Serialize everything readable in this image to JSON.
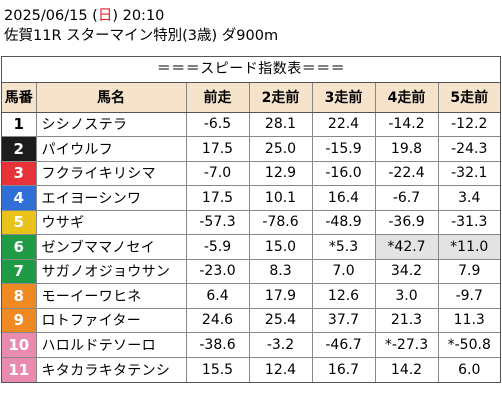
{
  "header": {
    "date_prefix": "2025/06/15 (",
    "weekday": "日",
    "date_suffix": ") 20:10",
    "race": "佐賀11R スターマイン特別(3歳) ダ900m"
  },
  "sheet_title": "＝＝＝スピード指数表＝＝＝",
  "columns": [
    "馬番",
    "馬名",
    "前走",
    "2走前",
    "3走前",
    "4走前",
    "5走前"
  ],
  "colors": {
    "header_bg": "#f6e3cc",
    "highlight_bg": "#e3e3e3",
    "frames": [
      "#ffffff",
      "#1c1c1c",
      "#e8323a",
      "#2f6fd6",
      "#e9c21a",
      "#1f9a45",
      "#ef8a23",
      "#e98ab0"
    ]
  },
  "rows": [
    {
      "num": "1",
      "frame": 1,
      "name": "シシノステラ",
      "v": [
        "-6.5",
        "28.1",
        "22.4",
        "-14.2",
        "-12.2"
      ],
      "gray": [
        false,
        false,
        false,
        false,
        false
      ]
    },
    {
      "num": "2",
      "frame": 2,
      "name": "パイウルフ",
      "v": [
        "17.5",
        "25.0",
        "-15.9",
        "19.8",
        "-24.3"
      ],
      "gray": [
        false,
        false,
        false,
        false,
        false
      ]
    },
    {
      "num": "3",
      "frame": 3,
      "name": "フクライキリシマ",
      "v": [
        "-7.0",
        "12.9",
        "-16.0",
        "-22.4",
        "-32.1"
      ],
      "gray": [
        false,
        false,
        false,
        false,
        false
      ]
    },
    {
      "num": "4",
      "frame": 4,
      "name": "エイヨーシンワ",
      "v": [
        "17.5",
        "10.1",
        "16.4",
        "-6.7",
        "3.4"
      ],
      "gray": [
        false,
        false,
        false,
        false,
        false
      ]
    },
    {
      "num": "5",
      "frame": 5,
      "name": "ウサギ",
      "v": [
        "-57.3",
        "-78.6",
        "-48.9",
        "-36.9",
        "-31.3"
      ],
      "gray": [
        false,
        false,
        false,
        false,
        false
      ]
    },
    {
      "num": "6",
      "frame": 6,
      "name": "ゼンブママノセイ",
      "v": [
        "-5.9",
        "15.0",
        "*5.3",
        "*42.7",
        "*11.0"
      ],
      "gray": [
        false,
        false,
        false,
        true,
        true
      ]
    },
    {
      "num": "7",
      "frame": 6,
      "name": "サガノオジョウサン",
      "v": [
        "-23.0",
        "8.3",
        "7.0",
        "34.2",
        "7.9"
      ],
      "gray": [
        false,
        false,
        false,
        false,
        false
      ]
    },
    {
      "num": "8",
      "frame": 7,
      "name": "モーイーワヒネ",
      "v": [
        "6.4",
        "17.9",
        "12.6",
        "3.0",
        "-9.7"
      ],
      "gray": [
        false,
        false,
        false,
        false,
        false
      ]
    },
    {
      "num": "9",
      "frame": 7,
      "name": "ロトファイター",
      "v": [
        "24.6",
        "25.4",
        "37.7",
        "21.3",
        "11.3"
      ],
      "gray": [
        false,
        false,
        false,
        false,
        false
      ]
    },
    {
      "num": "10",
      "frame": 8,
      "name": "ハロルドテソーロ",
      "v": [
        "-38.6",
        "-3.2",
        "-46.7",
        "*-27.3",
        "*-50.8"
      ],
      "gray": [
        false,
        false,
        false,
        false,
        false
      ]
    },
    {
      "num": "11",
      "frame": 8,
      "name": "キタカラキタテンシ",
      "v": [
        "15.5",
        "12.4",
        "16.7",
        "14.2",
        "6.0"
      ],
      "gray": [
        false,
        false,
        false,
        false,
        false
      ]
    }
  ]
}
